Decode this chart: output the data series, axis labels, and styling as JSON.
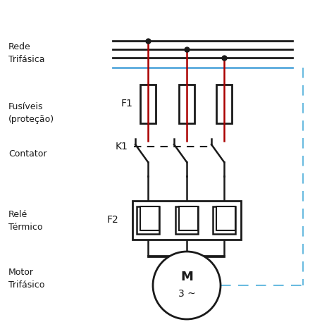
{
  "bg_color": "#ffffff",
  "line_color": "#1a1a1a",
  "red_color": "#aa0000",
  "blue_color": "#5aaadd",
  "dashed_color": "#6abbe0",
  "text_color": "#1a1a1a",
  "labels": {
    "rede": "Rede\nTrifásica",
    "fusiveis": "Fusíveis\n(proteção)",
    "contator": "Contator",
    "rele": "Relé\nTérmico",
    "motor": "Motor\nTrifásico"
  },
  "component_labels": {
    "f1": "F1",
    "k1": "K1",
    "f2": "F2",
    "m": "M",
    "m_sub": "3 ~"
  },
  "figsize": [
    4.74,
    4.74
  ],
  "dpi": 100
}
